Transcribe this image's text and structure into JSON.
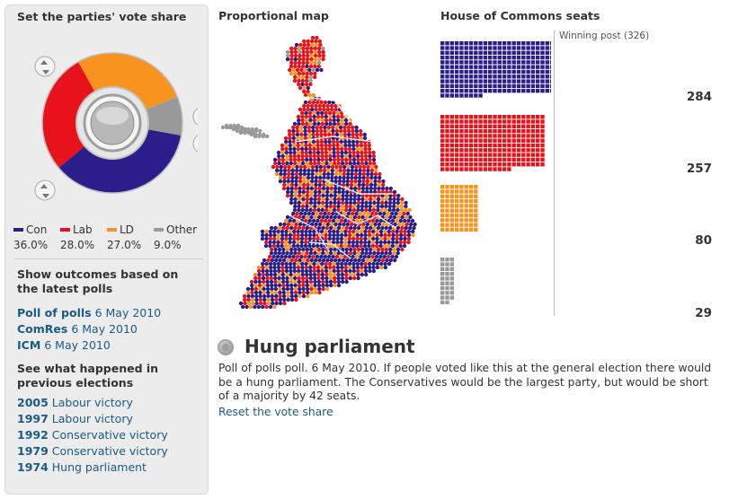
{
  "left_panel": {
    "title": "Set the parties' vote share",
    "parties": [
      {
        "name": "Con",
        "pct": "36.0%",
        "share": 36.0,
        "color": "#2a1f8a"
      },
      {
        "name": "Lab",
        "pct": "28.0%",
        "share": 28.0,
        "color": "#e8131a"
      },
      {
        "name": "LD",
        "pct": "27.0%",
        "share": 27.0,
        "color": "#f7931e"
      },
      {
        "name": "Other",
        "pct": "9.0%",
        "share": 9.0,
        "color": "#999999"
      }
    ],
    "polls_title": "Show outcomes based on the latest polls",
    "polls": [
      {
        "name": "Poll of polls",
        "date": "6 May 2010"
      },
      {
        "name": "ComRes",
        "date": "6 May 2010"
      },
      {
        "name": "ICM",
        "date": "6 May 2010"
      }
    ],
    "history_title": "See what happened in previous elections",
    "history": [
      {
        "year": "2005",
        "desc": "Labour victory"
      },
      {
        "year": "1997",
        "desc": "Labour victory"
      },
      {
        "year": "1992",
        "desc": "Conservative victory"
      },
      {
        "year": "1979",
        "desc": "Conservative victory"
      },
      {
        "year": "1974",
        "desc": "Hung parliament"
      }
    ]
  },
  "map": {
    "title": "Proportional map"
  },
  "seats": {
    "title": "House of Commons seats",
    "winning_post": "Winning post (326)",
    "rows": [
      {
        "party": "Con",
        "seats": "284",
        "count": 284,
        "color": "#2a1f8a"
      },
      {
        "party": "Lab",
        "seats": "257",
        "count": 257,
        "color": "#e8131a"
      },
      {
        "party": "LD",
        "seats": "80",
        "count": 80,
        "color": "#f7931e"
      },
      {
        "party": "Other",
        "seats": "29",
        "count": 29,
        "color": "#999999"
      }
    ]
  },
  "result": {
    "title": "Hung parliament",
    "text": "Poll of polls poll. 6 May 2010. If people voted like this at the general election there would be a hung parliament. The Conservatives would be the largest party, but would be short of a majority by 42 seats.",
    "reset_label": "Reset the vote share"
  }
}
